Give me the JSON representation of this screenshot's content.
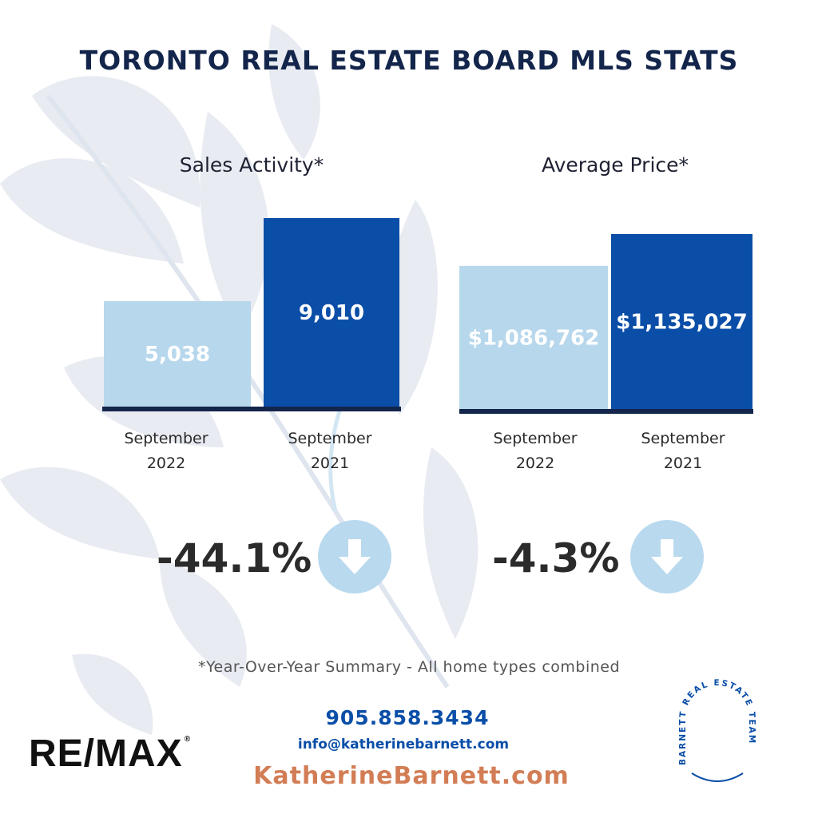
{
  "page": {
    "title": "TORONTO REAL ESTATE BOARD MLS STATS",
    "footnote": "*Year-Over-Year Summary - All home types combined"
  },
  "contact": {
    "phone": "905.858.3434",
    "email": "info@katherinebarnett.com",
    "website": "KatherineBarnett.com"
  },
  "brand": {
    "remax": "RE/MAX",
    "remax_mark": "®",
    "team_logo": "BARNETT REAL ESTATE TEAM"
  },
  "colors": {
    "light_bar": "#b7d7ec",
    "dark_bar": "#0a4ea8",
    "baseline": "#13254b",
    "title": "#13254b",
    "accent_orange": "#d27d55",
    "arrow_circle": "#b9d9ee"
  },
  "stats": {
    "sales_change": "-44.1%",
    "price_change": "-4.3%",
    "sales_arrow_icon": "down-arrow-icon",
    "price_arrow_icon": "down-arrow-icon"
  },
  "chart_data": [
    {
      "type": "bar",
      "title": "Sales Activity*",
      "categories": [
        "September 2022",
        "September 2021"
      ],
      "values": [
        5038,
        9010
      ],
      "value_labels": [
        "5,038",
        "9,010"
      ],
      "category_lines": [
        [
          "September",
          "2022"
        ],
        [
          "September",
          "2021"
        ]
      ],
      "ylim": [
        0,
        9010
      ],
      "grid": false
    },
    {
      "type": "bar",
      "title": "Average Price*",
      "categories": [
        "September 2022",
        "September 2021"
      ],
      "values": [
        1086762,
        1135027
      ],
      "value_labels": [
        "$1,086,762",
        "$1,135,027"
      ],
      "category_lines": [
        [
          "September",
          "2022"
        ],
        [
          "September",
          "2021"
        ]
      ],
      "ylim": [
        0,
        1135027
      ],
      "grid": false
    }
  ]
}
